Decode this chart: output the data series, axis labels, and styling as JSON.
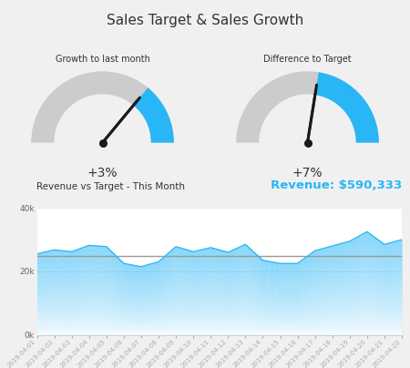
{
  "title": "Sales Target & Sales Growth",
  "title_fontsize": 11,
  "background_color": "#f0f0f0",
  "panel_color": "#ffffff",
  "gauge1_title": "Growth to last month",
  "gauge1_value": "+3%",
  "gauge1_pct": 0.28,
  "gauge2_title": "Difference to Target",
  "gauge2_value": "+7%",
  "gauge2_pct": 0.45,
  "chart_title": "Revenue vs Target - This Month",
  "revenue_label": "Revenue: $590,333",
  "revenue_color": "#29b6f6",
  "target_value": 25000,
  "yticks": [
    0,
    20000,
    40000
  ],
  "ytick_labels": [
    "0k",
    "20k",
    "40k"
  ],
  "gauge_bg_color": "#cccccc",
  "gauge_fill_color": "#29b6f6",
  "needle_color": "#1a1a1a",
  "dates": [
    "2019-04-01",
    "2019-04-02",
    "2019-04-03",
    "2019-04-04",
    "2019-04-05",
    "2019-04-06",
    "2019-04-07",
    "2019-04-08",
    "2019-04-09",
    "2019-04-10",
    "2019-04-11",
    "2019-04-12",
    "2019-04-13",
    "2019-04-14",
    "2019-04-15",
    "2019-04-16",
    "2019-04-17",
    "2019-04-18",
    "2019-04-19",
    "2019-04-20",
    "2019-04-21",
    "2019-04-22"
  ],
  "revenue_values": [
    25500,
    26800,
    26200,
    28200,
    27800,
    22500,
    21500,
    23000,
    27800,
    26200,
    27500,
    26000,
    28500,
    23500,
    22500,
    22500,
    26500,
    28000,
    29500,
    32500,
    28500,
    30000
  ],
  "line_color": "#999999",
  "fill_top_color": "#29b6f6",
  "fill_bottom_color": "#e8f8ff",
  "legend_rev_color": "#87CEEB"
}
